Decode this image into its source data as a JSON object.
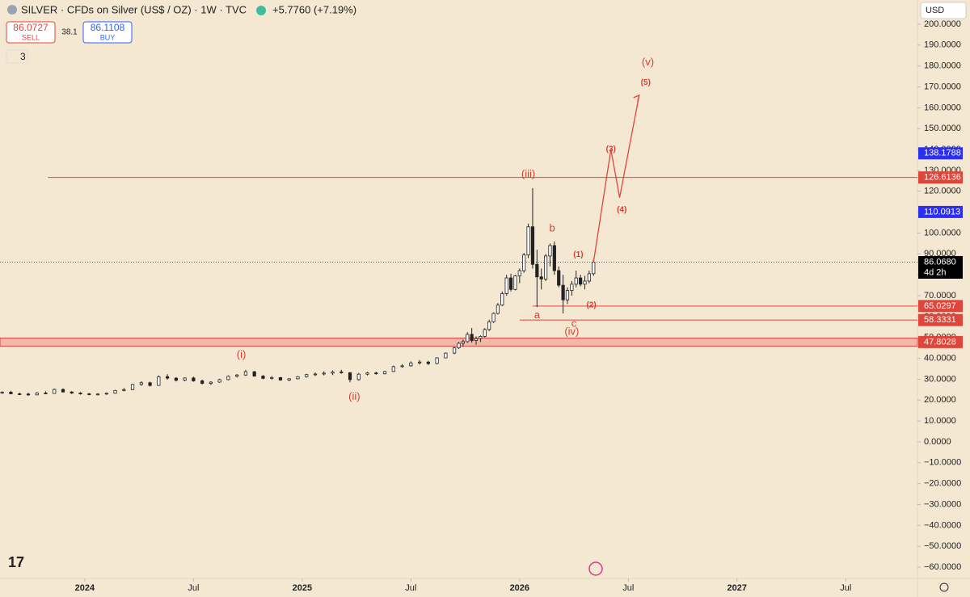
{
  "chart_data": {
    "type": "candlestick",
    "title": "SILVER · CFDs on Silver (US$ / OZ) · 1W · TVC",
    "change": "+5.7760 (+7.19%)",
    "sell": {
      "price": "86.0727",
      "label": "SELL"
    },
    "spread": "38.1",
    "buy": {
      "price": "86.1108",
      "label": "BUY"
    },
    "indicators": "3",
    "currency": "USD",
    "xlim": [
      2023.61,
      2027.83
    ],
    "xticks": [
      {
        "value": 2024,
        "label": "2024"
      },
      {
        "value": 2024.5,
        "label": "Jul"
      },
      {
        "value": 2025,
        "label": "2025"
      },
      {
        "value": 2025.5,
        "label": "Jul"
      },
      {
        "value": 2026,
        "label": "2026"
      },
      {
        "value": 2026.5,
        "label": "Jul"
      },
      {
        "value": 2027,
        "label": "2027"
      },
      {
        "value": 2027.5,
        "label": "Jul"
      }
    ],
    "ylim": [
      -65.4,
      211.6
    ],
    "yticks": [
      {
        "value": 200,
        "label": "200.0000"
      },
      {
        "value": 190,
        "label": "190.0000"
      },
      {
        "value": 180,
        "label": "180.0000"
      },
      {
        "value": 170,
        "label": "170.0000"
      },
      {
        "value": 160,
        "label": "160.0000"
      },
      {
        "value": 150,
        "label": "150.0000"
      },
      {
        "value": 140,
        "label": "140.0000"
      },
      {
        "value": 130,
        "label": "130.0000"
      },
      {
        "value": 120,
        "label": "120.0000"
      },
      {
        "value": 110,
        "label": "110.0000"
      },
      {
        "value": 100,
        "label": "100.0000"
      },
      {
        "value": 90,
        "label": "90.0000"
      },
      {
        "value": 80,
        "label": "80.0000"
      },
      {
        "value": 70,
        "label": "70.0000"
      },
      {
        "value": 60,
        "label": "60.0000"
      },
      {
        "value": 50,
        "label": "50.0000"
      },
      {
        "value": 40,
        "label": "40.0000"
      },
      {
        "value": 30,
        "label": "30.0000"
      },
      {
        "value": 20,
        "label": "20.0000"
      },
      {
        "value": 10,
        "label": "10.0000"
      },
      {
        "value": 0,
        "label": "0.0000"
      },
      {
        "value": -10,
        "label": "−10.0000"
      },
      {
        "value": -20,
        "label": "−20.0000"
      },
      {
        "value": -30,
        "label": "−30.0000"
      },
      {
        "value": -40,
        "label": "−40.0000"
      },
      {
        "value": -50,
        "label": "−50.0000"
      },
      {
        "value": -60,
        "label": "−60.0000"
      }
    ],
    "x": [
      2023.62,
      2023.66,
      2023.7,
      2023.74,
      2023.78,
      2023.82,
      2023.86,
      2023.9,
      2023.94,
      2023.98,
      2024.02,
      2024.06,
      2024.1,
      2024.14,
      2024.18,
      2024.22,
      2024.26,
      2024.3,
      2024.34,
      2024.38,
      2024.42,
      2024.46,
      2024.5,
      2024.54,
      2024.58,
      2024.62,
      2024.66,
      2024.7,
      2024.74,
      2024.78,
      2024.82,
      2024.86,
      2024.9,
      2024.94,
      2024.98,
      2025.02,
      2025.06,
      2025.1,
      2025.14,
      2025.18,
      2025.22,
      2025.26,
      2025.3,
      2025.34,
      2025.38,
      2025.42,
      2025.46,
      2025.5,
      2025.54,
      2025.58,
      2025.62,
      2025.66,
      2025.7,
      2025.72,
      2025.74,
      2025.76,
      2025.78,
      2025.8,
      2025.82,
      2025.84,
      2025.86,
      2025.88,
      2025.9,
      2025.92,
      2025.94,
      2025.96,
      2025.98,
      2026.0,
      2026.02,
      2026.04,
      2026.06,
      2026.08,
      2026.1,
      2026.12,
      2026.14,
      2026.16,
      2026.18,
      2026.2,
      2026.22,
      2026.24,
      2026.26,
      2026.28,
      2026.3,
      2026.32,
      2026.34
    ],
    "open": [
      23.5,
      23.8,
      23.0,
      22.9,
      22.5,
      23.4,
      23.2,
      25.1,
      23.9,
      23.4,
      23.0,
      22.8,
      22.9,
      23.3,
      24.6,
      25.0,
      27.5,
      28.3,
      27.0,
      31.2,
      30.5,
      29.5,
      30.6,
      29.2,
      28.0,
      28.6,
      29.8,
      31.4,
      32.0,
      33.6,
      31.5,
      30.4,
      30.8,
      29.6,
      30.2,
      31.2,
      32.2,
      32.5,
      32.9,
      33.5,
      33.1,
      29.8,
      32.4,
      33.0,
      32.6,
      33.7,
      36.0,
      36.4,
      37.8,
      38.2,
      37.5,
      40.2,
      42.5,
      45.0,
      47.2,
      48.0,
      51.5,
      48.5,
      49.5,
      50.5,
      53.8,
      57.5,
      61.5,
      65.5,
      71.0,
      78.5,
      73.0,
      79.5,
      82.0,
      89.5,
      103.0,
      85.0,
      79.0,
      78.0,
      89.0,
      94.0,
      82.0,
      75.0,
      68.0,
      72.5,
      75.5,
      78.5,
      75.5,
      77.0,
      80.5
    ],
    "high": [
      24.2,
      24.4,
      23.6,
      23.5,
      23.8,
      24.2,
      25.5,
      25.6,
      24.3,
      23.8,
      23.4,
      23.3,
      23.6,
      24.9,
      25.8,
      27.8,
      29.0,
      28.8,
      31.8,
      32.4,
      31.0,
      30.9,
      31.2,
      29.8,
      29.0,
      30.2,
      31.8,
      32.5,
      34.5,
      33.9,
      32.0,
      31.5,
      31.0,
      30.5,
      31.5,
      32.6,
      33.2,
      33.8,
      34.2,
      34.5,
      33.4,
      33.0,
      33.5,
      33.6,
      34.0,
      36.5,
      37.2,
      38.5,
      39.2,
      38.8,
      40.5,
      42.8,
      45.5,
      47.8,
      49.0,
      52.5,
      54.5,
      50.5,
      51.0,
      54.5,
      58.5,
      62.0,
      66.5,
      72.0,
      80.0,
      80.5,
      80.0,
      83.0,
      90.5,
      104.5,
      121.5,
      92.0,
      83.0,
      90.0,
      95.0,
      96.0,
      84.0,
      80.0,
      74.0,
      77.0,
      82.0,
      80.0,
      79.5,
      82.0,
      87.5
    ],
    "low": [
      23.0,
      23.2,
      22.4,
      22.0,
      22.3,
      23.0,
      23.0,
      23.6,
      22.9,
      22.6,
      22.3,
      22.2,
      22.5,
      23.1,
      24.2,
      24.8,
      26.8,
      26.5,
      26.9,
      29.8,
      28.9,
      29.0,
      28.8,
      27.5,
      27.2,
      28.3,
      29.5,
      30.8,
      31.6,
      31.2,
      30.0,
      29.8,
      29.3,
      29.1,
      29.9,
      30.8,
      31.5,
      31.8,
      32.0,
      32.6,
      28.5,
      29.3,
      31.8,
      32.2,
      32.3,
      33.5,
      35.5,
      36.0,
      37.0,
      36.8,
      37.2,
      40.0,
      42.0,
      44.5,
      45.5,
      47.5,
      47.5,
      46.5,
      47.8,
      50.0,
      53.0,
      57.0,
      61.0,
      65.0,
      70.0,
      72.0,
      72.5,
      76.0,
      81.0,
      88.0,
      83.0,
      64.5,
      73.0,
      77.0,
      84.0,
      80.0,
      74.0,
      61.5,
      66.0,
      70.0,
      74.0,
      74.5,
      73.0,
      76.0,
      79.5
    ],
    "close": [
      23.8,
      23.0,
      22.9,
      22.5,
      23.4,
      23.2,
      25.1,
      23.9,
      23.4,
      23.0,
      22.8,
      22.9,
      23.3,
      24.6,
      25.0,
      27.5,
      28.3,
      27.0,
      31.2,
      30.5,
      29.5,
      30.6,
      29.2,
      28.0,
      28.6,
      29.8,
      31.4,
      32.0,
      33.6,
      31.5,
      30.4,
      30.8,
      29.6,
      30.2,
      31.2,
      32.2,
      32.5,
      32.9,
      33.5,
      33.1,
      29.8,
      32.4,
      33.0,
      32.6,
      33.7,
      36.0,
      36.4,
      37.8,
      38.2,
      37.5,
      40.2,
      42.5,
      45.0,
      47.2,
      48.0,
      51.5,
      48.5,
      49.5,
      50.5,
      53.8,
      57.5,
      61.5,
      65.5,
      71.0,
      78.5,
      73.0,
      79.5,
      82.0,
      89.5,
      103.0,
      85.0,
      79.0,
      78.0,
      89.0,
      94.0,
      82.0,
      75.0,
      68.0,
      72.5,
      75.5,
      78.5,
      75.5,
      77.0,
      80.5,
      86.1
    ],
    "levels": [
      {
        "value": 138.1788,
        "label": "138.1788",
        "color": "#2b2ff2",
        "line": false
      },
      {
        "value": 126.6136,
        "label": "126.6136",
        "color": "#e0453c",
        "line": true,
        "from": 2023.83
      },
      {
        "value": 110.0913,
        "label": "110.0913",
        "color": "#2b2ff2",
        "line": false
      },
      {
        "value": 86.068,
        "label": "86.0680",
        "color": "#000000",
        "line": "dotted",
        "sub": "4d 2h"
      },
      {
        "value": 65.0297,
        "label": "65.0297",
        "color": "#e0453c",
        "line": true,
        "from": 2026.06
      },
      {
        "value": 58.3331,
        "label": "58.3331",
        "color": "#e0453c",
        "line": true,
        "from": 2026.0
      },
      {
        "value": 47.8028,
        "label": "47.8028",
        "color": "#e0453c",
        "line": "band",
        "from": 2023.61
      }
    ],
    "annotations": [
      {
        "text": "(i)",
        "x": 2024.72,
        "y": 41.5
      },
      {
        "text": "(ii)",
        "x": 2025.24,
        "y": 21.5
      },
      {
        "text": "(iii)",
        "x": 2026.04,
        "y": 128
      },
      {
        "text": "a",
        "x": 2026.08,
        "y": 60.5
      },
      {
        "text": "b",
        "x": 2026.15,
        "y": 102
      },
      {
        "text": "(iv)",
        "x": 2026.24,
        "y": 52.5
      },
      {
        "text": "c",
        "x": 2026.25,
        "y": 56.5
      },
      {
        "text": "(1)",
        "x": 2026.27,
        "y": 89.5
      },
      {
        "text": "(2)",
        "x": 2026.33,
        "y": 65.5
      },
      {
        "text": "(3)",
        "x": 2026.42,
        "y": 140
      },
      {
        "text": "(4)",
        "x": 2026.47,
        "y": 111
      },
      {
        "text": "(5)",
        "x": 2026.58,
        "y": 172
      },
      {
        "text": "(v)",
        "x": 2026.59,
        "y": 181.5
      }
    ],
    "projection": {
      "x": [
        2026.34,
        2026.42,
        2026.46,
        2026.55
      ],
      "y": [
        86.1,
        140,
        117,
        166
      ]
    }
  }
}
